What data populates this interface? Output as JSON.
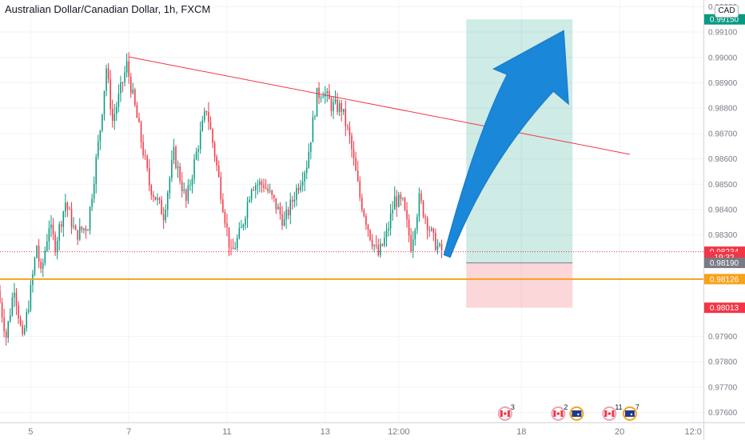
{
  "chart_data": {
    "type": "candlestick",
    "title": "Australian Dollar/Canadian Dollar, 1h, FXCM",
    "currency": "CAD",
    "y_ticks": [
      "0.99200",
      "0.99100",
      "0.99000",
      "0.98900",
      "0.98800",
      "0.98700",
      "0.98600",
      "0.98500",
      "0.98400",
      "0.98300",
      "0.97900",
      "0.97800",
      "0.97700",
      "0.97600"
    ],
    "ylim": [
      0.9758,
      0.9922
    ],
    "x_ticks": [
      {
        "label": "5",
        "hour": 37
      },
      {
        "label": "7",
        "hour": 85
      },
      {
        "label": "11",
        "hour": 133
      },
      {
        "label": "13",
        "hour": 181
      },
      {
        "label": "12:00",
        "hour": 217
      },
      {
        "label": "18",
        "hour": 277
      },
      {
        "label": "20",
        "hour": 325
      },
      {
        "label": "12:0",
        "hour": 361
      }
    ],
    "xlim_hours": [
      22,
      366
    ],
    "price_labels": [
      {
        "text": "0.99150",
        "value": 0.9915,
        "color": "#089981"
      },
      {
        "text": "0.98234",
        "value": 0.98234,
        "color": "#f23645"
      },
      {
        "text": "19:32",
        "value": 0.98213,
        "color": "#f23645"
      },
      {
        "text": "0.98190",
        "value": 0.9819,
        "color": "#787b86"
      },
      {
        "text": "0.98126",
        "value": 0.98126,
        "color": "#f7a21b"
      },
      {
        "text": "0.98013",
        "value": 0.98013,
        "color": "#f23645"
      }
    ],
    "anchors": [
      {
        "h": 22,
        "p": 0.9808
      },
      {
        "h": 26,
        "p": 0.979
      },
      {
        "h": 30,
        "p": 0.981
      },
      {
        "h": 34,
        "p": 0.9788
      },
      {
        "h": 38,
        "p": 0.9808
      },
      {
        "h": 41,
        "p": 0.9826
      },
      {
        "h": 43,
        "p": 0.9814
      },
      {
        "h": 47,
        "p": 0.9834
      },
      {
        "h": 50,
        "p": 0.9826
      },
      {
        "h": 55,
        "p": 0.9843
      },
      {
        "h": 60,
        "p": 0.983
      },
      {
        "h": 66,
        "p": 0.9834
      },
      {
        "h": 72,
        "p": 0.9872
      },
      {
        "h": 75,
        "p": 0.9896
      },
      {
        "h": 78,
        "p": 0.9875
      },
      {
        "h": 81,
        "p": 0.9884
      },
      {
        "h": 85,
        "p": 0.9897
      },
      {
        "h": 90,
        "p": 0.9876
      },
      {
        "h": 96,
        "p": 0.985
      },
      {
        "h": 103,
        "p": 0.9838
      },
      {
        "h": 108,
        "p": 0.9862
      },
      {
        "h": 114,
        "p": 0.9843
      },
      {
        "h": 120,
        "p": 0.9866
      },
      {
        "h": 124,
        "p": 0.988
      },
      {
        "h": 128,
        "p": 0.9862
      },
      {
        "h": 132,
        "p": 0.9842
      },
      {
        "h": 136,
        "p": 0.9822
      },
      {
        "h": 141,
        "p": 0.9832
      },
      {
        "h": 146,
        "p": 0.985
      },
      {
        "h": 152,
        "p": 0.985
      },
      {
        "h": 157,
        "p": 0.9843
      },
      {
        "h": 162,
        "p": 0.9835
      },
      {
        "h": 168,
        "p": 0.9848
      },
      {
        "h": 173,
        "p": 0.9858
      },
      {
        "h": 178,
        "p": 0.9885
      },
      {
        "h": 181,
        "p": 0.9887
      },
      {
        "h": 185,
        "p": 0.9881
      },
      {
        "h": 190,
        "p": 0.988
      },
      {
        "h": 194,
        "p": 0.9868
      },
      {
        "h": 199,
        "p": 0.9845
      },
      {
        "h": 204,
        "p": 0.983
      },
      {
        "h": 208,
        "p": 0.9822
      },
      {
        "h": 212,
        "p": 0.983
      },
      {
        "h": 216,
        "p": 0.9844
      },
      {
        "h": 220,
        "p": 0.9842
      },
      {
        "h": 224,
        "p": 0.9826
      },
      {
        "h": 228,
        "p": 0.9844
      },
      {
        "h": 232,
        "p": 0.9835
      },
      {
        "h": 235,
        "p": 0.9828
      },
      {
        "h": 238,
        "p": 0.9824
      }
    ],
    "trendline": {
      "from": {
        "h": 85,
        "p": 0.99002
      },
      "to": {
        "h": 330,
        "p": 0.98618
      },
      "color": "#f23645"
    },
    "support_line": {
      "value": 0.98126,
      "color": "#f7a21b"
    },
    "last_price_line": {
      "value": 0.98234,
      "color": "#f23645"
    },
    "position": {
      "entry": 0.9819,
      "target": 0.9915,
      "stop": 0.98013,
      "from_h": 250,
      "to_h": 302
    },
    "arrow": {
      "color": "#1a87d8"
    },
    "candle_colors": {
      "up": "#089981",
      "down": "#f23645"
    },
    "events": [
      {
        "flag": "CA",
        "count": "3",
        "h": 269
      },
      {
        "flag": "CA",
        "count": "2",
        "h": 295
      },
      {
        "flag": "AU",
        "count": "",
        "h": 304
      },
      {
        "flag": "CA",
        "count": "11",
        "h": 320
      },
      {
        "flag": "AU",
        "count": "7",
        "h": 330
      }
    ],
    "grid": true
  }
}
